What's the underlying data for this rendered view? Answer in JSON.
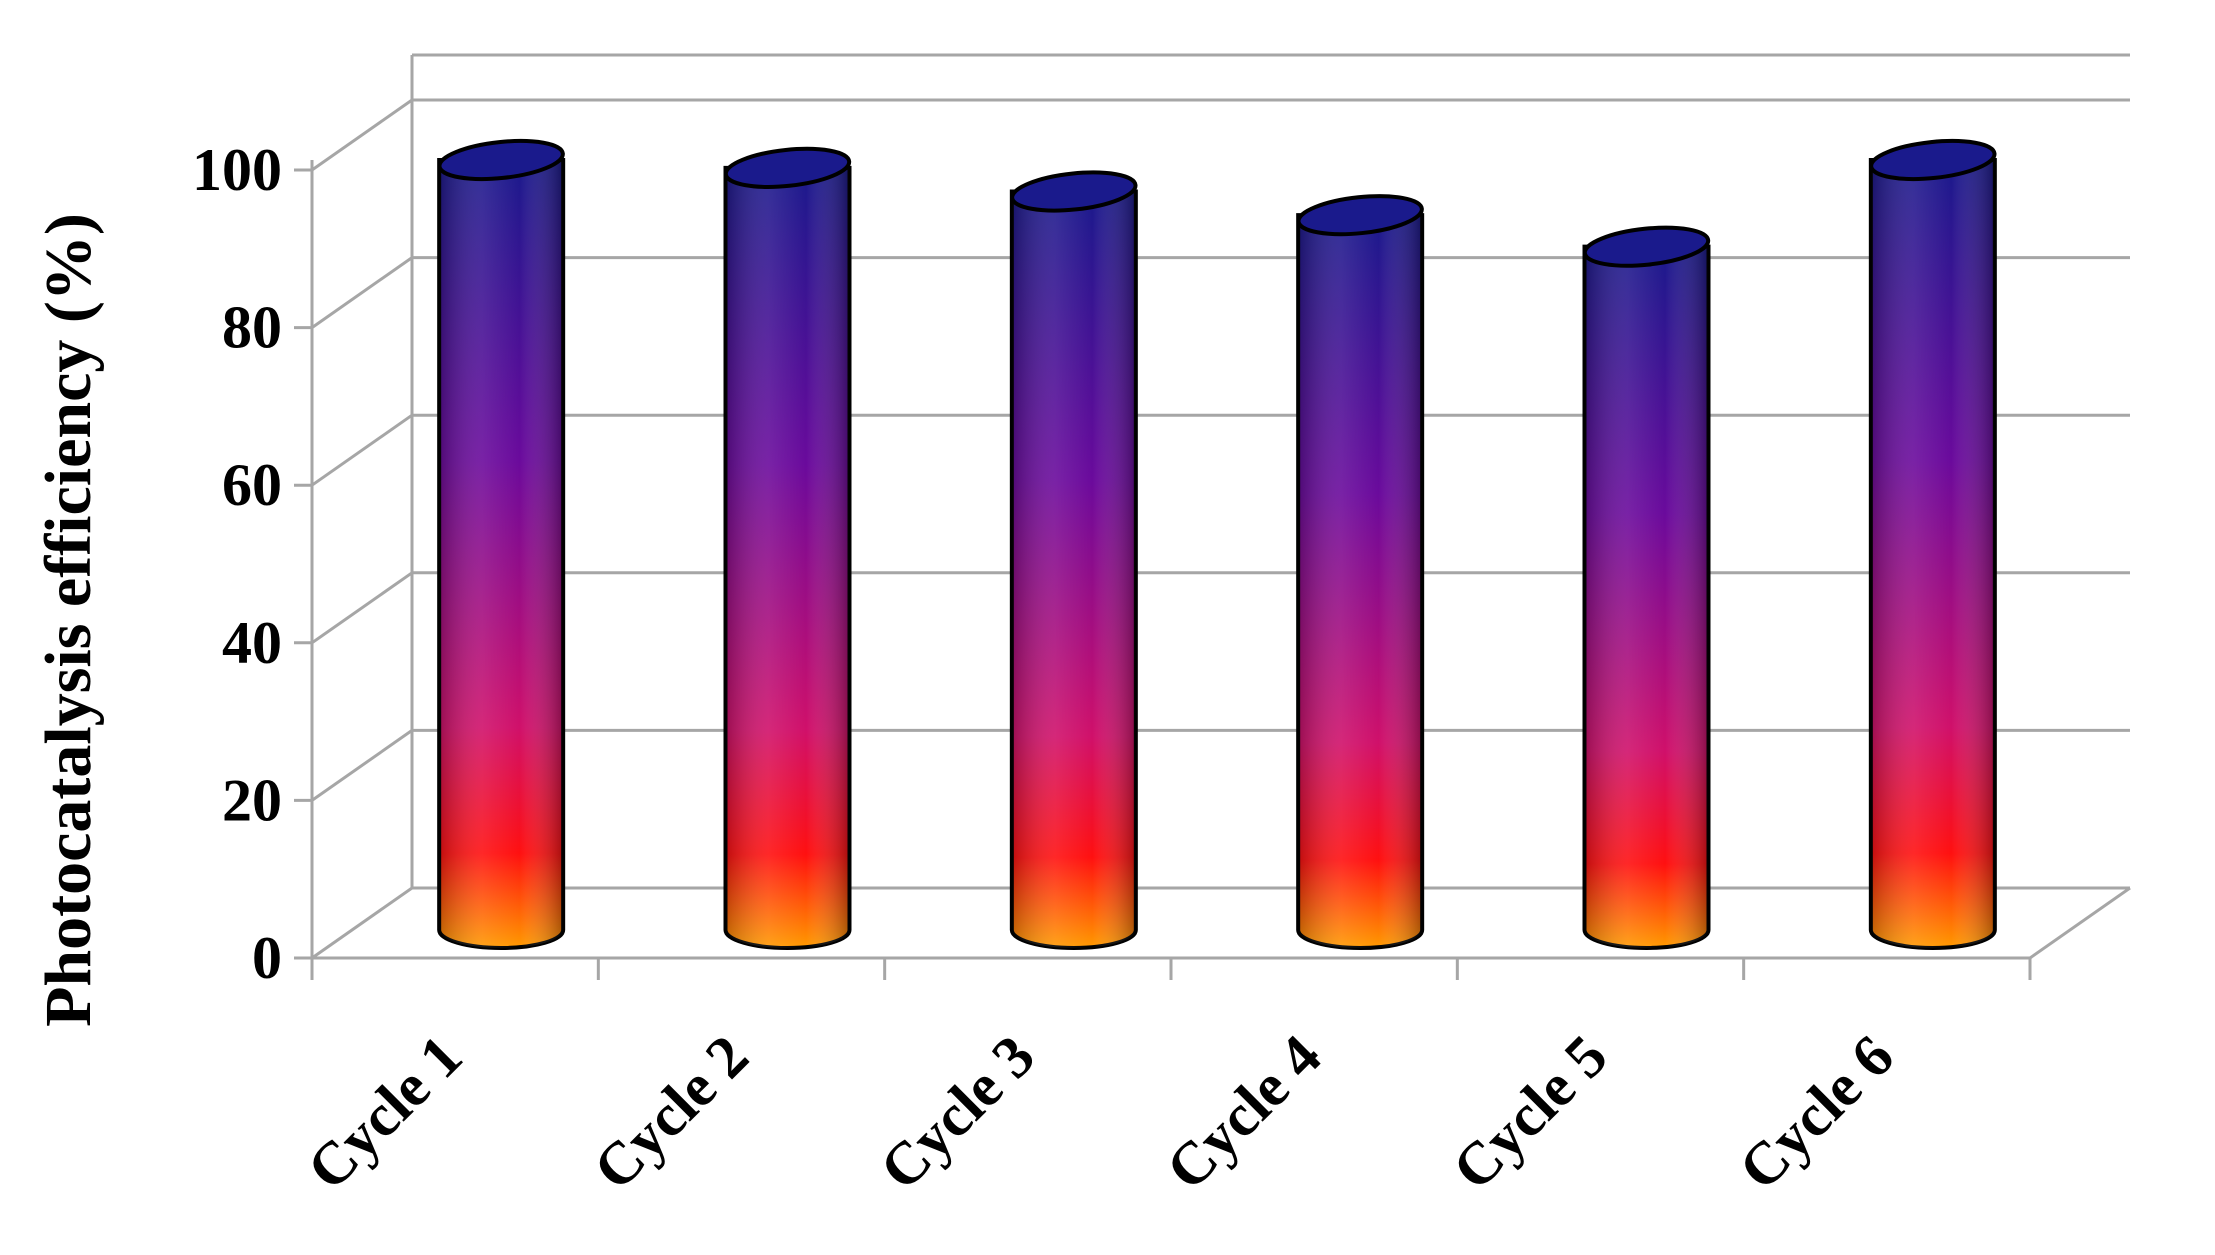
{
  "chart_data": {
    "type": "bar",
    "title": "",
    "xlabel": "",
    "ylabel": "Photocatalysis efficiency (%)",
    "categories": [
      "Cycle 1",
      "Cycle 2",
      "Cycle 3",
      "Cycle 4",
      "Cycle 5",
      "Cycle 6"
    ],
    "values": [
      100,
      99,
      96,
      93,
      89,
      100
    ],
    "ylim": [
      0,
      100
    ],
    "yticks": [
      "0",
      "20",
      "40",
      "60",
      "80",
      "100"
    ],
    "grid": true,
    "legend": "none",
    "style": "3d-cylinder",
    "colors": {
      "bar_top": "#1a1a8c",
      "bar_upper_mid": "#6a0a9c",
      "bar_lower_mid": "#d0106a",
      "bar_base": "#ff1010",
      "bar_bottom": "#ff9a00",
      "gridline": "#a6a6a6",
      "outline": "#000000"
    }
  }
}
